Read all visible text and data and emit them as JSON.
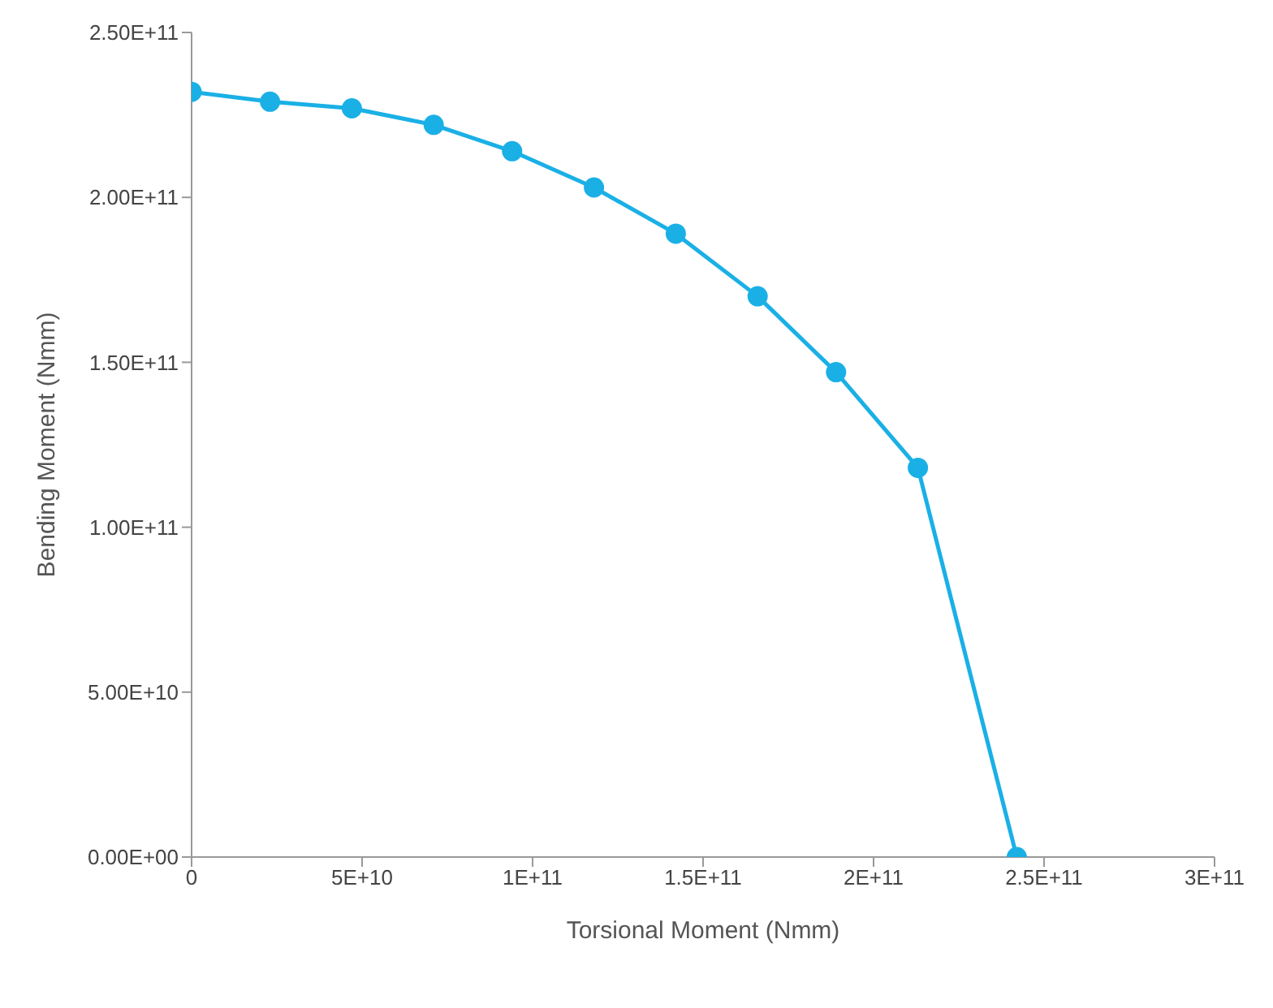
{
  "chart_data": {
    "type": "line",
    "xlabel": "Torsional Moment (Nmm)",
    "ylabel": "Bending Moment (Nmm)",
    "x": [
      0,
      23000000000,
      47000000000,
      71000000000,
      94000000000,
      118000000000,
      142000000000,
      166000000000,
      189000000000,
      213000000000,
      242000000000
    ],
    "series": [
      {
        "color": "#1ab0e6",
        "values": [
          232000000000,
          229000000000,
          227000000000,
          222000000000,
          214000000000,
          203000000000,
          189000000000,
          170000000000,
          147000000000,
          118000000000,
          0
        ]
      }
    ],
    "xlim": [
      0,
      300000000000
    ],
    "xticks": [
      {
        "value": 0,
        "label": "0"
      },
      {
        "value": 50000000000,
        "label": "5E+10"
      },
      {
        "value": 100000000000,
        "label": "1E+11"
      },
      {
        "value": 150000000000,
        "label": "1.5E+11"
      },
      {
        "value": 200000000000,
        "label": "2E+11"
      },
      {
        "value": 250000000000,
        "label": "2.5E+11"
      },
      {
        "value": 300000000000,
        "label": "3E+11"
      }
    ],
    "ylim": [
      0,
      250000000000
    ],
    "yticks": [
      {
        "value": 0,
        "label": "0.00E+00"
      },
      {
        "value": 50000000000,
        "label": "5.00E+10"
      },
      {
        "value": 100000000000,
        "label": "1.00E+11"
      },
      {
        "value": 150000000000,
        "label": "1.50E+11"
      },
      {
        "value": 200000000000,
        "label": "2.00E+11"
      },
      {
        "value": 250000000000,
        "label": "2.50E+11"
      }
    ],
    "marker": "circle",
    "line_style": "solid",
    "grid": false,
    "legend": false
  }
}
